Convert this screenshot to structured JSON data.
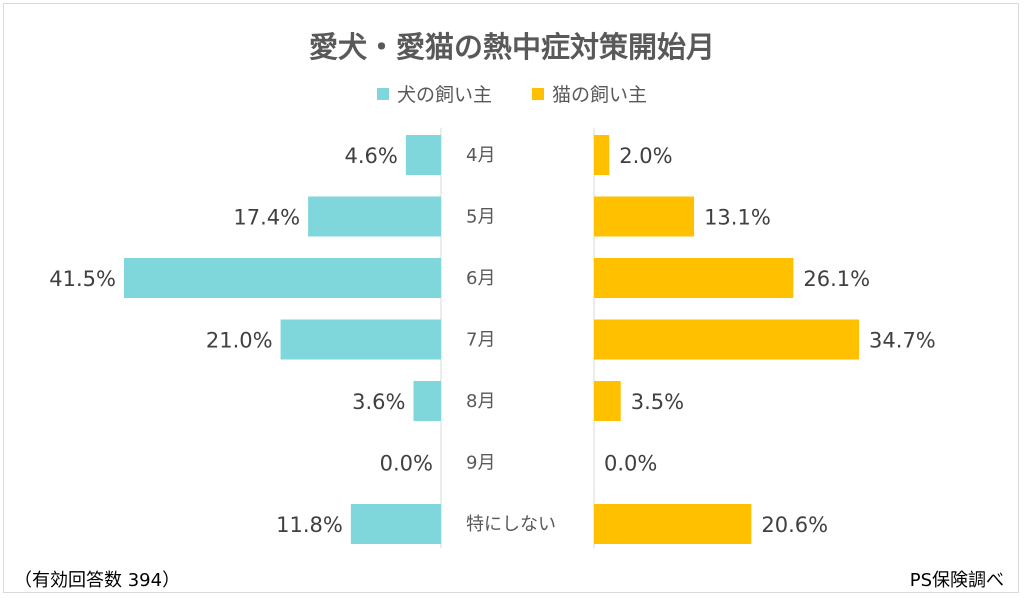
{
  "chart_data": {
    "type": "bar",
    "title": "愛犬・愛猫の熱中症対策開始月",
    "categories": [
      "4月",
      "5月",
      "6月",
      "7月",
      "8月",
      "9月",
      "特にしない"
    ],
    "series": [
      {
        "name": "犬の飼い主",
        "color": "#7fd7dc",
        "values": [
          4.6,
          17.4,
          41.5,
          21.0,
          3.6,
          0.0,
          11.8
        ],
        "labels": [
          "4.6%",
          "17.4%",
          "41.5%",
          "21.0%",
          "3.6%",
          "0.0%",
          "11.8%"
        ]
      },
      {
        "name": "猫の飼い主",
        "color": "#ffc000",
        "values": [
          2.0,
          13.1,
          26.1,
          34.7,
          3.5,
          0.0,
          20.6
        ],
        "labels": [
          "2.0%",
          "13.1%",
          "26.1%",
          "34.7%",
          "3.5%",
          "0.0%",
          "20.6%"
        ]
      }
    ],
    "orientation": "horizontal-butterfly",
    "grid": false,
    "legend_position": "top"
  },
  "footer": {
    "note": "（有効回答数 394）",
    "source": "PS保険調べ"
  }
}
